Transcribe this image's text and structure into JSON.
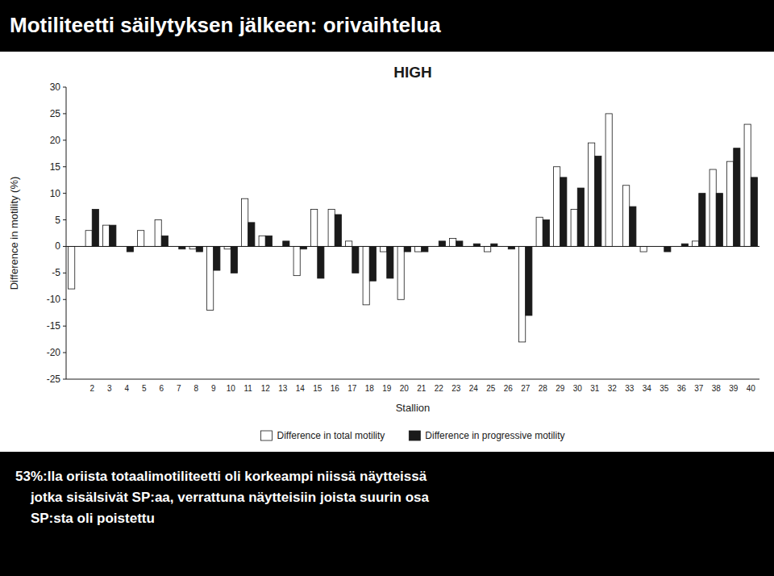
{
  "chart_data": {
    "type": "bar",
    "title": "Motiliteetti säilytyksen jälkeen: orivaihtelua",
    "subtitle": "HIGH",
    "x_label": "Stallion",
    "y_label": "Difference in motility (%)",
    "categories": [
      null,
      "2",
      "3",
      "4",
      "5",
      "6",
      "7",
      "8",
      "9",
      "10",
      "11",
      "12",
      "13",
      "14",
      "15",
      "16",
      "17",
      "18",
      "19",
      "20",
      "21",
      "22",
      "23",
      "24",
      "25",
      "26",
      "27",
      "28",
      "29",
      "30",
      "31",
      "32",
      "33",
      "34",
      "35",
      "36",
      "37",
      "38",
      "39",
      "40"
    ],
    "series": [
      {
        "name": "Difference in total motility",
        "color": "#ffffff",
        "values": [
          -8,
          3,
          4,
          0,
          3,
          5,
          0,
          -0.5,
          -12,
          -0.5,
          9,
          2,
          0,
          -5.5,
          7,
          7,
          1,
          -11,
          -1,
          -10,
          -1,
          0,
          1.5,
          0,
          -1,
          0,
          -18,
          5.5,
          15,
          7,
          19.5,
          25,
          11.5,
          -1,
          0,
          0,
          1,
          14.5,
          16,
          23
        ]
      },
      {
        "name": "Difference in progressive motility",
        "color": "#1a1a1a",
        "values": [
          0,
          7,
          4,
          -1,
          0,
          2,
          -0.5,
          -1,
          -4.5,
          -5,
          4.5,
          2,
          1,
          -0.5,
          -6,
          6,
          -5,
          -6.5,
          -6,
          -1,
          -1,
          1,
          1,
          0.5,
          0.5,
          -0.5,
          -13,
          5,
          13,
          11,
          17,
          0,
          7.5,
          0,
          -1,
          0.5,
          10,
          10,
          18.5,
          13
        ]
      }
    ],
    "ylim": [
      -25,
      30
    ],
    "yticks": [
      -25,
      -20,
      -15,
      -10,
      -5,
      0,
      5,
      10,
      15,
      20,
      25,
      30
    ],
    "grid": false,
    "legend": "bottom",
    "annotations": [
      "53%:lla oriista totaalimotiliteetti oli korkeampi niissä näytteissä",
      "    jotka sisälsivät SP:aa, verrattuna näytteisiin joista suurin osa",
      "    SP:sta oli poistettu"
    ]
  }
}
